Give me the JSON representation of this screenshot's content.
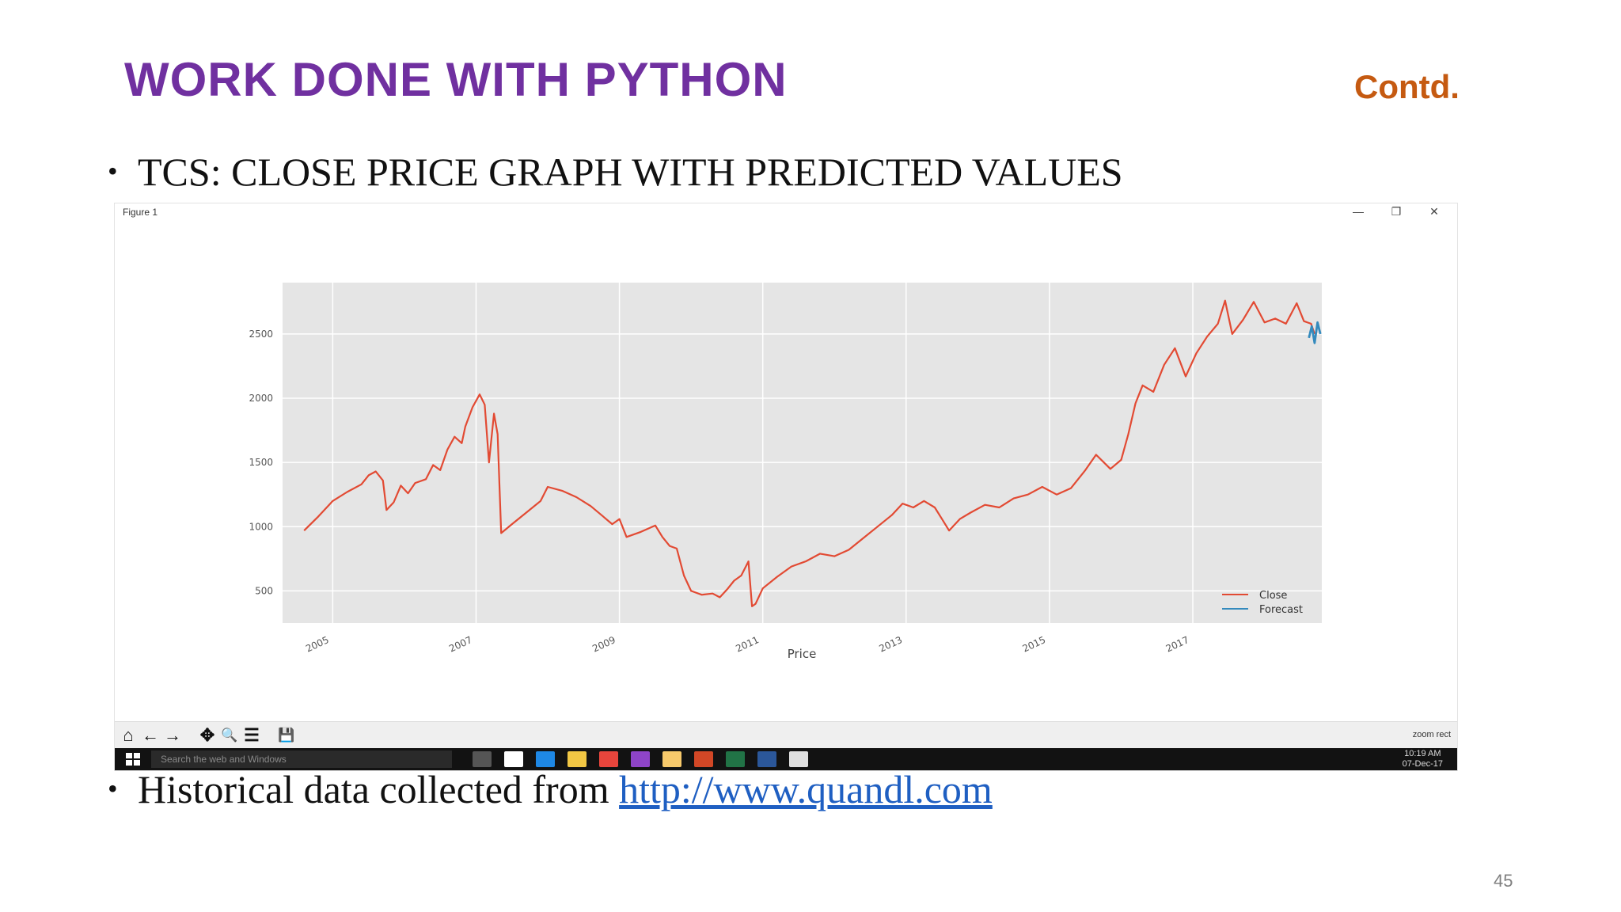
{
  "slide": {
    "title": "WORK DONE WITH PYTHON",
    "contd": "Contd.",
    "bullet_1": "TCS: CLOSE PRICE GRAPH WITH PREDICTED VALUES",
    "bullet_2_prefix": "Historical data collected from ",
    "bullet_2_link": "http://www.quandl.com",
    "page_number": "45",
    "bullet_symbol": "•"
  },
  "window": {
    "title": "Figure 1",
    "minimize": "—",
    "maximize": "❐",
    "close": "✕",
    "toolbar_mode": "zoom rect"
  },
  "toolbar_icons": [
    "home-icon",
    "back-arrow-icon",
    "forward-arrow-icon",
    "pan-icon",
    "zoom-icon",
    "subplots-icon",
    "save-icon"
  ],
  "toolbar_glyphs": [
    "⌂",
    "←",
    "→",
    "✥",
    "🔍",
    "☰",
    "💾"
  ],
  "taskbar": {
    "search_placeholder": "Search the web and Windows",
    "time": "10:19 AM",
    "date": "07-Dec-17",
    "app_icons": [
      "task-view-icon",
      "store-icon",
      "edge-icon",
      "file-explorer-icon",
      "chrome-icon",
      "visual-studio-icon",
      "onedrive-icon",
      "powerpoint-icon",
      "excel-icon",
      "word-icon",
      "paint-icon"
    ],
    "app_colors": [
      "#555555",
      "#ffffff",
      "#1e88e5",
      "#f2c744",
      "#e8453c",
      "#8e44c8",
      "#f7c96b",
      "#d24726",
      "#217346",
      "#2b579a",
      "#e0e0e0"
    ]
  },
  "colors": {
    "close": "#e24a33",
    "forecast": "#348abd",
    "plot_bg": "#e5e5e5",
    "title": "#7030a0",
    "contd": "#c55a11",
    "link": "#1f5fc2"
  },
  "chart_data": {
    "type": "line",
    "title": "",
    "xlabel": "Price",
    "ylabel": "",
    "xlim": [
      2004.3,
      2018.8
    ],
    "ylim": [
      250,
      2900
    ],
    "xticks": [
      "2005",
      "2007",
      "2009",
      "2011",
      "2013",
      "2015",
      "2017"
    ],
    "yticks": [
      500,
      1000,
      1500,
      2000,
      2500
    ],
    "grid": true,
    "legend": "lower-right",
    "series": [
      {
        "name": "Close",
        "color": "#e24a33",
        "points": [
          [
            2004.6,
            970
          ],
          [
            2004.8,
            1080
          ],
          [
            2005.0,
            1200
          ],
          [
            2005.2,
            1270
          ],
          [
            2005.4,
            1330
          ],
          [
            2005.5,
            1400
          ],
          [
            2005.6,
            1430
          ],
          [
            2005.7,
            1360
          ],
          [
            2005.75,
            1130
          ],
          [
            2005.85,
            1190
          ],
          [
            2005.95,
            1320
          ],
          [
            2006.05,
            1260
          ],
          [
            2006.15,
            1340
          ],
          [
            2006.3,
            1370
          ],
          [
            2006.4,
            1480
          ],
          [
            2006.5,
            1440
          ],
          [
            2006.6,
            1600
          ],
          [
            2006.7,
            1700
          ],
          [
            2006.8,
            1650
          ],
          [
            2006.85,
            1780
          ],
          [
            2006.95,
            1930
          ],
          [
            2007.05,
            2030
          ],
          [
            2007.12,
            1950
          ],
          [
            2007.18,
            1500
          ],
          [
            2007.25,
            1880
          ],
          [
            2007.3,
            1720
          ],
          [
            2007.35,
            950
          ],
          [
            2007.5,
            1020
          ],
          [
            2007.7,
            1110
          ],
          [
            2007.9,
            1200
          ],
          [
            2008.0,
            1310
          ],
          [
            2008.2,
            1280
          ],
          [
            2008.4,
            1230
          ],
          [
            2008.6,
            1160
          ],
          [
            2008.75,
            1090
          ],
          [
            2008.9,
            1020
          ],
          [
            2009.0,
            1060
          ],
          [
            2009.1,
            920
          ],
          [
            2009.3,
            960
          ],
          [
            2009.5,
            1010
          ],
          [
            2009.6,
            920
          ],
          [
            2009.7,
            850
          ],
          [
            2009.8,
            830
          ],
          [
            2009.9,
            620
          ],
          [
            2010.0,
            500
          ],
          [
            2010.15,
            470
          ],
          [
            2010.3,
            480
          ],
          [
            2010.4,
            450
          ],
          [
            2010.5,
            510
          ],
          [
            2010.6,
            580
          ],
          [
            2010.7,
            620
          ],
          [
            2010.8,
            730
          ],
          [
            2010.85,
            380
          ],
          [
            2010.9,
            400
          ],
          [
            2011.0,
            520
          ],
          [
            2011.2,
            610
          ],
          [
            2011.4,
            690
          ],
          [
            2011.6,
            730
          ],
          [
            2011.8,
            790
          ],
          [
            2012.0,
            770
          ],
          [
            2012.2,
            820
          ],
          [
            2012.4,
            910
          ],
          [
            2012.6,
            1000
          ],
          [
            2012.8,
            1090
          ],
          [
            2012.95,
            1180
          ],
          [
            2013.1,
            1150
          ],
          [
            2013.25,
            1200
          ],
          [
            2013.4,
            1150
          ],
          [
            2013.5,
            1060
          ],
          [
            2013.6,
            970
          ],
          [
            2013.75,
            1060
          ],
          [
            2013.9,
            1110
          ],
          [
            2014.1,
            1170
          ],
          [
            2014.3,
            1150
          ],
          [
            2014.5,
            1220
          ],
          [
            2014.7,
            1250
          ],
          [
            2014.9,
            1310
          ],
          [
            2015.1,
            1250
          ],
          [
            2015.3,
            1300
          ],
          [
            2015.5,
            1440
          ],
          [
            2015.65,
            1560
          ],
          [
            2015.85,
            1450
          ],
          [
            2016.0,
            1520
          ],
          [
            2016.1,
            1720
          ],
          [
            2016.2,
            1960
          ],
          [
            2016.3,
            2100
          ],
          [
            2016.45,
            2050
          ],
          [
            2016.6,
            2260
          ],
          [
            2016.75,
            2390
          ],
          [
            2016.9,
            2170
          ],
          [
            2017.05,
            2350
          ],
          [
            2017.2,
            2480
          ],
          [
            2017.35,
            2580
          ],
          [
            2017.45,
            2760
          ],
          [
            2017.55,
            2500
          ],
          [
            2017.7,
            2610
          ],
          [
            2017.85,
            2750
          ],
          [
            2018.0,
            2590
          ],
          [
            2018.15,
            2620
          ],
          [
            2018.3,
            2580
          ],
          [
            2018.45,
            2740
          ],
          [
            2018.55,
            2600
          ],
          [
            2018.65,
            2580
          ],
          [
            2018.7,
            2500
          ]
        ]
      },
      {
        "name": "Forecast",
        "color": "#348abd",
        "points": [
          [
            2018.62,
            2470
          ],
          [
            2018.66,
            2560
          ],
          [
            2018.7,
            2430
          ],
          [
            2018.74,
            2590
          ],
          [
            2018.78,
            2500
          ]
        ]
      }
    ]
  }
}
